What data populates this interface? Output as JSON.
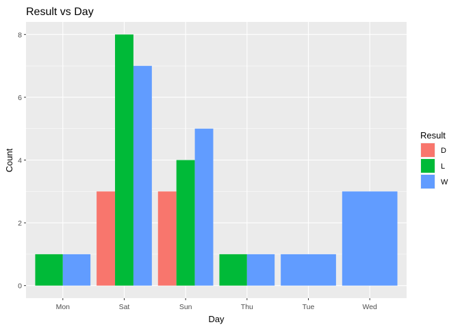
{
  "chart_data": {
    "type": "bar",
    "title": "Result vs Day",
    "xlabel": "Day",
    "ylabel": "Count",
    "categories": [
      "Mon",
      "Sat",
      "Sun",
      "Thu",
      "Tue",
      "Wed"
    ],
    "series": [
      {
        "name": "D",
        "color": "#F8766D",
        "values": [
          0,
          3,
          3,
          0,
          0,
          0
        ]
      },
      {
        "name": "L",
        "color": "#00BA38",
        "values": [
          1,
          8,
          4,
          1,
          0,
          0
        ]
      },
      {
        "name": "W",
        "color": "#619CFF",
        "values": [
          1,
          7,
          5,
          1,
          1,
          3
        ]
      }
    ],
    "ylim": [
      -0.4,
      8.4
    ],
    "yticks": [
      0,
      2,
      4,
      6,
      8
    ],
    "grid": true,
    "legend": {
      "title": "Result",
      "position": "right"
    },
    "panel_background": "#EBEBEB",
    "grid_color": "#FFFFFF"
  }
}
